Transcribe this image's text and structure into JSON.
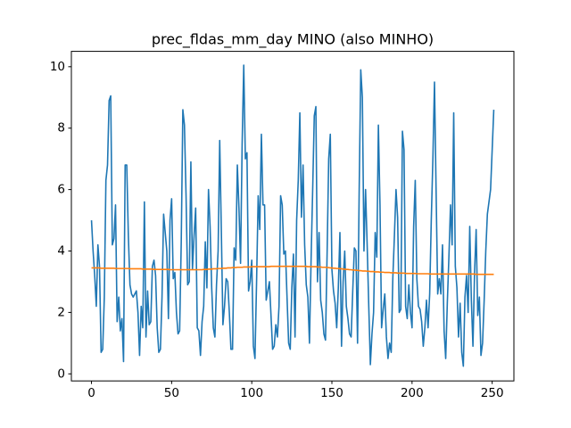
{
  "chart_data": {
    "type": "line",
    "title": "prec_fldas_mm_day MINO (also MINHO)",
    "x": [
      0,
      1,
      2,
      3,
      4,
      5,
      6,
      7,
      8,
      9,
      10,
      11,
      12,
      13,
      14,
      15,
      16,
      17,
      18,
      19,
      20,
      21,
      22,
      23,
      24,
      25,
      26,
      27,
      28,
      29,
      30,
      31,
      32,
      33,
      34,
      35,
      36,
      37,
      38,
      39,
      40,
      41,
      42,
      43,
      44,
      45,
      46,
      47,
      48,
      49,
      50,
      51,
      52,
      53,
      54,
      55,
      56,
      57,
      58,
      59,
      60,
      61,
      62,
      63,
      64,
      65,
      66,
      67,
      68,
      69,
      70,
      71,
      72,
      73,
      74,
      75,
      76,
      77,
      78,
      79,
      80,
      81,
      82,
      83,
      84,
      85,
      86,
      87,
      88,
      89,
      90,
      91,
      92,
      93,
      94,
      95,
      96,
      97,
      98,
      99,
      100,
      101,
      102,
      103,
      104,
      105,
      106,
      107,
      108,
      109,
      110,
      111,
      112,
      113,
      114,
      115,
      116,
      117,
      118,
      119,
      120,
      121,
      122,
      123,
      124,
      125,
      126,
      127,
      128,
      129,
      130,
      131,
      132,
      133,
      134,
      135,
      136,
      137,
      138,
      139,
      140,
      141,
      142,
      143,
      144,
      145,
      146,
      147,
      148,
      149,
      150,
      151,
      152,
      153,
      154,
      155,
      156,
      157,
      158,
      159,
      160,
      161,
      162,
      163,
      164,
      165,
      166,
      167,
      168,
      169,
      170,
      171,
      172,
      173,
      174,
      175,
      176,
      177,
      178,
      179,
      180,
      181,
      182,
      183,
      184,
      185,
      186,
      187,
      188,
      189,
      190,
      191,
      192,
      193,
      194,
      195,
      196,
      197,
      198,
      199,
      200,
      201,
      202,
      203,
      204,
      205,
      206,
      207,
      208,
      209,
      210,
      211,
      212,
      213,
      214,
      215,
      216,
      217,
      218,
      219,
      220,
      221,
      222,
      223,
      224,
      225,
      226,
      227,
      228,
      229,
      230,
      231,
      232,
      233,
      234,
      235,
      236,
      237,
      238,
      239,
      240,
      241,
      242,
      243,
      244,
      245,
      246,
      247,
      248,
      249,
      250,
      251
    ],
    "series": [
      {
        "color": "#1f77b4",
        "values": [
          5.0,
          4.0,
          3.2,
          2.2,
          4.2,
          3.5,
          0.7,
          0.8,
          2.5,
          6.3,
          6.8,
          8.9,
          9.05,
          4.2,
          4.4,
          5.5,
          1.7,
          2.5,
          1.4,
          1.8,
          0.4,
          6.8,
          6.8,
          4.5,
          2.9,
          2.6,
          2.5,
          2.6,
          2.7,
          2.0,
          0.6,
          2.2,
          1.5,
          5.6,
          1.2,
          2.7,
          1.6,
          1.7,
          3.5,
          3.7,
          3.2,
          1.5,
          0.7,
          0.8,
          2.5,
          5.2,
          4.6,
          4.0,
          1.8,
          5.0,
          5.7,
          3.1,
          3.3,
          2.0,
          1.3,
          1.4,
          4.3,
          8.6,
          8.1,
          5.8,
          2.9,
          3.0,
          6.9,
          3.4,
          4.5,
          5.4,
          1.5,
          1.4,
          0.6,
          1.7,
          2.2,
          4.3,
          2.8,
          6.0,
          4.8,
          2.8,
          1.5,
          1.2,
          2.9,
          4.0,
          7.6,
          4.7,
          1.6,
          2.2,
          3.1,
          3.0,
          2.0,
          0.8,
          0.8,
          4.1,
          3.7,
          6.8,
          5.4,
          3.6,
          7.5,
          10.05,
          7.0,
          7.2,
          2.7,
          3.0,
          3.7,
          0.9,
          0.5,
          3.0,
          5.8,
          4.7,
          7.8,
          5.5,
          5.5,
          2.4,
          2.7,
          3.0,
          1.9,
          0.8,
          0.9,
          1.6,
          1.2,
          2.2,
          5.8,
          5.5,
          3.9,
          4.0,
          2.5,
          1.0,
          0.8,
          2.8,
          3.9,
          1.2,
          5.0,
          6.3,
          8.5,
          5.1,
          6.8,
          4.2,
          2.9,
          2.5,
          1.0,
          3.7,
          6.0,
          8.4,
          8.7,
          3.0,
          4.6,
          2.4,
          2.0,
          1.3,
          1.1,
          3.9,
          7.0,
          7.8,
          3.4,
          2.7,
          2.3,
          1.5,
          2.8,
          4.6,
          0.9,
          3.0,
          4.0,
          2.2,
          1.8,
          1.3,
          1.2,
          2.7,
          4.1,
          4.0,
          1.0,
          5.9,
          9.9,
          9.0,
          4.0,
          6.0,
          4.2,
          2.2,
          0.3,
          1.3,
          2.0,
          4.6,
          3.8,
          8.1,
          5.5,
          1.5,
          2.1,
          2.6,
          1.2,
          0.5,
          1.0,
          0.7,
          3.1,
          4.5,
          6.0,
          5.1,
          2.0,
          2.1,
          7.9,
          7.3,
          2.2,
          1.8,
          2.9,
          2.0,
          1.5,
          4.8,
          6.3,
          3.1,
          2.2,
          2.1,
          1.7,
          0.9,
          1.5,
          2.4,
          1.5,
          2.6,
          5.0,
          7.0,
          9.5,
          6.0,
          2.6,
          3.1,
          2.6,
          4.2,
          1.4,
          0.5,
          2.3,
          3.8,
          5.5,
          4.2,
          8.5,
          3.5,
          2.8,
          1.2,
          2.3,
          0.7,
          0.25,
          2.5,
          3.2,
          2.0,
          4.8,
          2.4,
          0.9,
          3.3,
          4.7,
          1.9,
          2.5,
          0.6,
          1.0,
          2.4,
          4.0,
          5.2,
          5.6,
          6.0,
          7.3,
          8.6
        ]
      },
      {
        "color": "#ff7f0e",
        "values": [
          3.45,
          3.45,
          3.45,
          3.45,
          3.45,
          3.45,
          3.44,
          3.44,
          3.44,
          3.44,
          3.44,
          3.44,
          3.44,
          3.44,
          3.44,
          3.43,
          3.43,
          3.43,
          3.43,
          3.43,
          3.43,
          3.43,
          3.43,
          3.43,
          3.42,
          3.42,
          3.42,
          3.42,
          3.42,
          3.42,
          3.42,
          3.42,
          3.41,
          3.41,
          3.41,
          3.41,
          3.41,
          3.41,
          3.41,
          3.4,
          3.4,
          3.4,
          3.4,
          3.4,
          3.4,
          3.4,
          3.4,
          3.4,
          3.4,
          3.39,
          3.39,
          3.39,
          3.39,
          3.39,
          3.39,
          3.39,
          3.39,
          3.39,
          3.39,
          3.39,
          3.39,
          3.39,
          3.39,
          3.39,
          3.39,
          3.39,
          3.39,
          3.39,
          3.39,
          3.39,
          3.4,
          3.4,
          3.4,
          3.41,
          3.41,
          3.41,
          3.42,
          3.42,
          3.42,
          3.43,
          3.43,
          3.43,
          3.44,
          3.44,
          3.44,
          3.45,
          3.45,
          3.45,
          3.46,
          3.46,
          3.46,
          3.47,
          3.47,
          3.47,
          3.47,
          3.48,
          3.48,
          3.48,
          3.48,
          3.48,
          3.49,
          3.49,
          3.49,
          3.49,
          3.49,
          3.49,
          3.49,
          3.49,
          3.49,
          3.49,
          3.49,
          3.49,
          3.5,
          3.5,
          3.5,
          3.5,
          3.5,
          3.5,
          3.5,
          3.5,
          3.5,
          3.5,
          3.5,
          3.5,
          3.5,
          3.5,
          3.5,
          3.5,
          3.5,
          3.5,
          3.5,
          3.5,
          3.5,
          3.5,
          3.5,
          3.49,
          3.49,
          3.49,
          3.49,
          3.49,
          3.49,
          3.48,
          3.48,
          3.48,
          3.47,
          3.47,
          3.47,
          3.46,
          3.46,
          3.45,
          3.45,
          3.44,
          3.44,
          3.43,
          3.43,
          3.42,
          3.42,
          3.41,
          3.41,
          3.4,
          3.4,
          3.39,
          3.39,
          3.38,
          3.38,
          3.37,
          3.37,
          3.36,
          3.36,
          3.35,
          3.35,
          3.35,
          3.34,
          3.34,
          3.33,
          3.33,
          3.33,
          3.32,
          3.32,
          3.32,
          3.31,
          3.31,
          3.31,
          3.3,
          3.3,
          3.3,
          3.3,
          3.29,
          3.29,
          3.29,
          3.29,
          3.28,
          3.28,
          3.28,
          3.28,
          3.28,
          3.27,
          3.27,
          3.27,
          3.27,
          3.27,
          3.27,
          3.27,
          3.26,
          3.26,
          3.26,
          3.26,
          3.26,
          3.26,
          3.26,
          3.26,
          3.25,
          3.25,
          3.25,
          3.25,
          3.25,
          3.25,
          3.25,
          3.25,
          3.25,
          3.25,
          3.25,
          3.25,
          3.25,
          3.25,
          3.25,
          3.25,
          3.25,
          3.25,
          3.25,
          3.25,
          3.25,
          3.25,
          3.25,
          3.25,
          3.25,
          3.25,
          3.25,
          3.25,
          3.25,
          3.24,
          3.24,
          3.24,
          3.24,
          3.24,
          3.24,
          3.24,
          3.24,
          3.24,
          3.24,
          3.24,
          3.24
        ]
      }
    ],
    "xlim": [
      -12.55,
      263.55
    ],
    "xticks": [
      0,
      50,
      100,
      150,
      200,
      250
    ],
    "ylim": [
      -0.23,
      10.5
    ],
    "yticks": [
      0,
      2,
      4,
      6,
      8,
      10
    ],
    "grid": false
  }
}
